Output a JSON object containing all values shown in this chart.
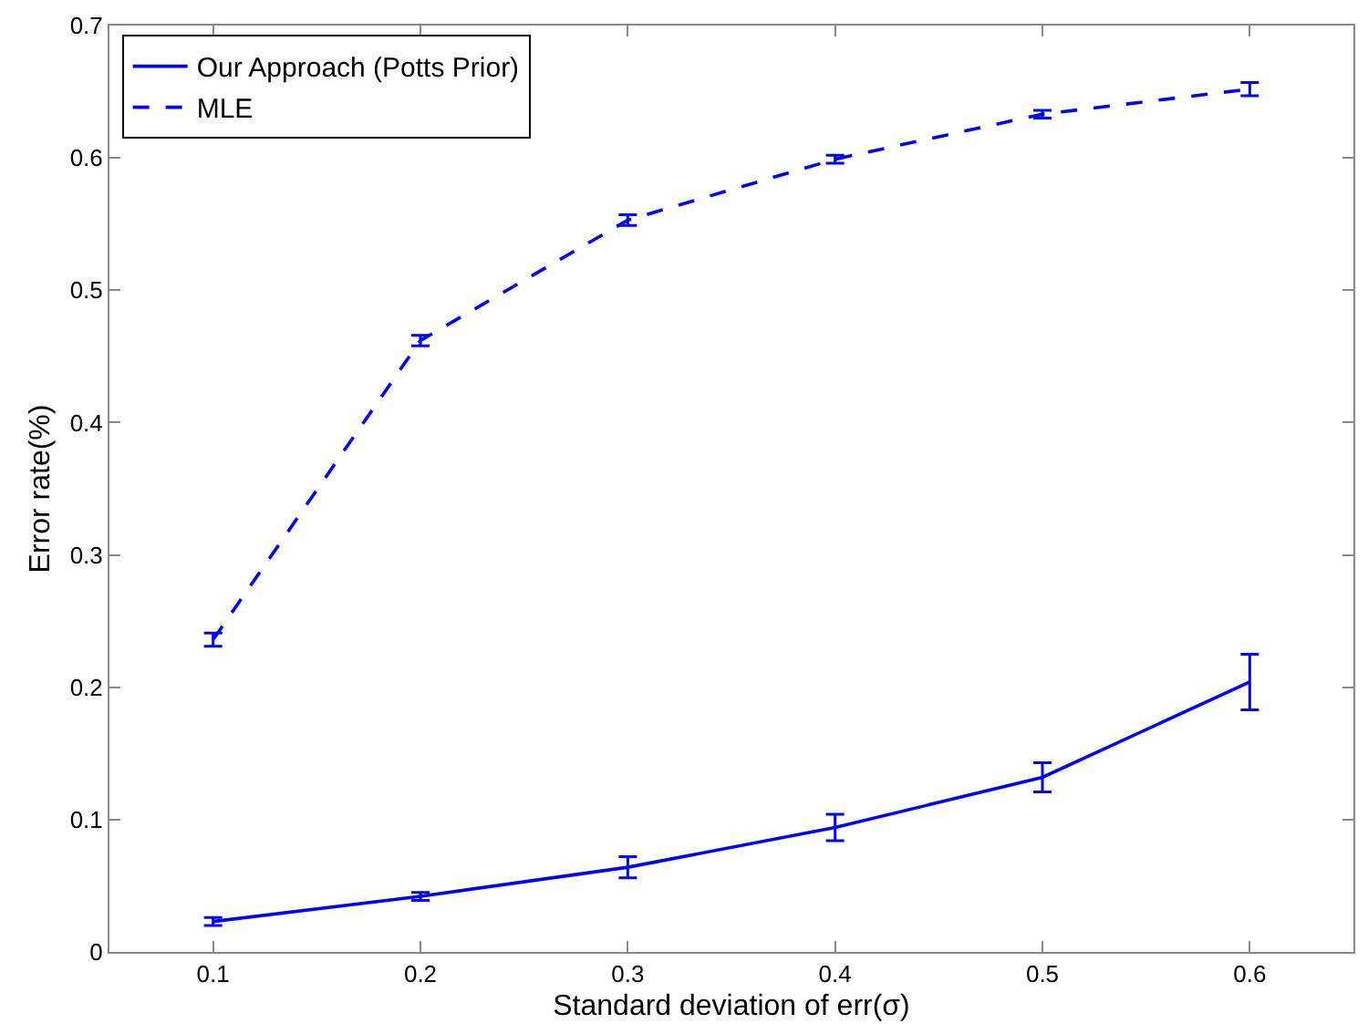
{
  "chart_data": {
    "type": "line",
    "xlabel": "Standard deviation of err(σ)",
    "ylabel": "Error rate(%)",
    "x": [
      0.1,
      0.2,
      0.3,
      0.4,
      0.5,
      0.6
    ],
    "series": [
      {
        "name": "Our Approach (Potts Prior)",
        "color": "#0000ff",
        "line_style": "solid",
        "values": [
          0.023,
          0.042,
          0.064,
          0.094,
          0.132,
          0.204
        ],
        "errors": [
          0.003,
          0.003,
          0.008,
          0.01,
          0.011,
          0.021
        ]
      },
      {
        "name": "MLE",
        "color": "#0000ff",
        "line_style": "dashed",
        "values": [
          0.236,
          0.462,
          0.553,
          0.599,
          0.633,
          0.652
        ],
        "errors": [
          0.005,
          0.004,
          0.004,
          0.003,
          0.003,
          0.005
        ]
      }
    ],
    "xlim": [
      0.05,
      0.65
    ],
    "xticks": [
      0.1,
      0.2,
      0.3,
      0.4,
      0.5,
      0.6
    ],
    "ylim": [
      0,
      0.7
    ],
    "yticks": [
      0,
      0.1,
      0.2,
      0.3,
      0.4,
      0.5,
      0.6,
      0.7
    ],
    "legend": "top left"
  }
}
